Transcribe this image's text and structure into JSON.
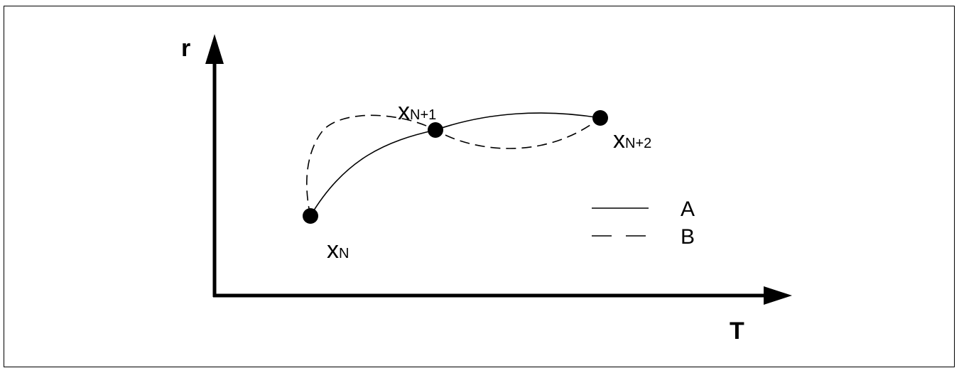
{
  "axes": {
    "y_label": "r",
    "x_label": "T"
  },
  "points": [
    {
      "main": "x",
      "sub": "N"
    },
    {
      "main": "x",
      "sub": "N+1"
    },
    {
      "main": "x",
      "sub": "N+2"
    }
  ],
  "legend": [
    {
      "label": "A",
      "style": "solid"
    },
    {
      "label": "B",
      "style": "dashed"
    }
  ]
}
